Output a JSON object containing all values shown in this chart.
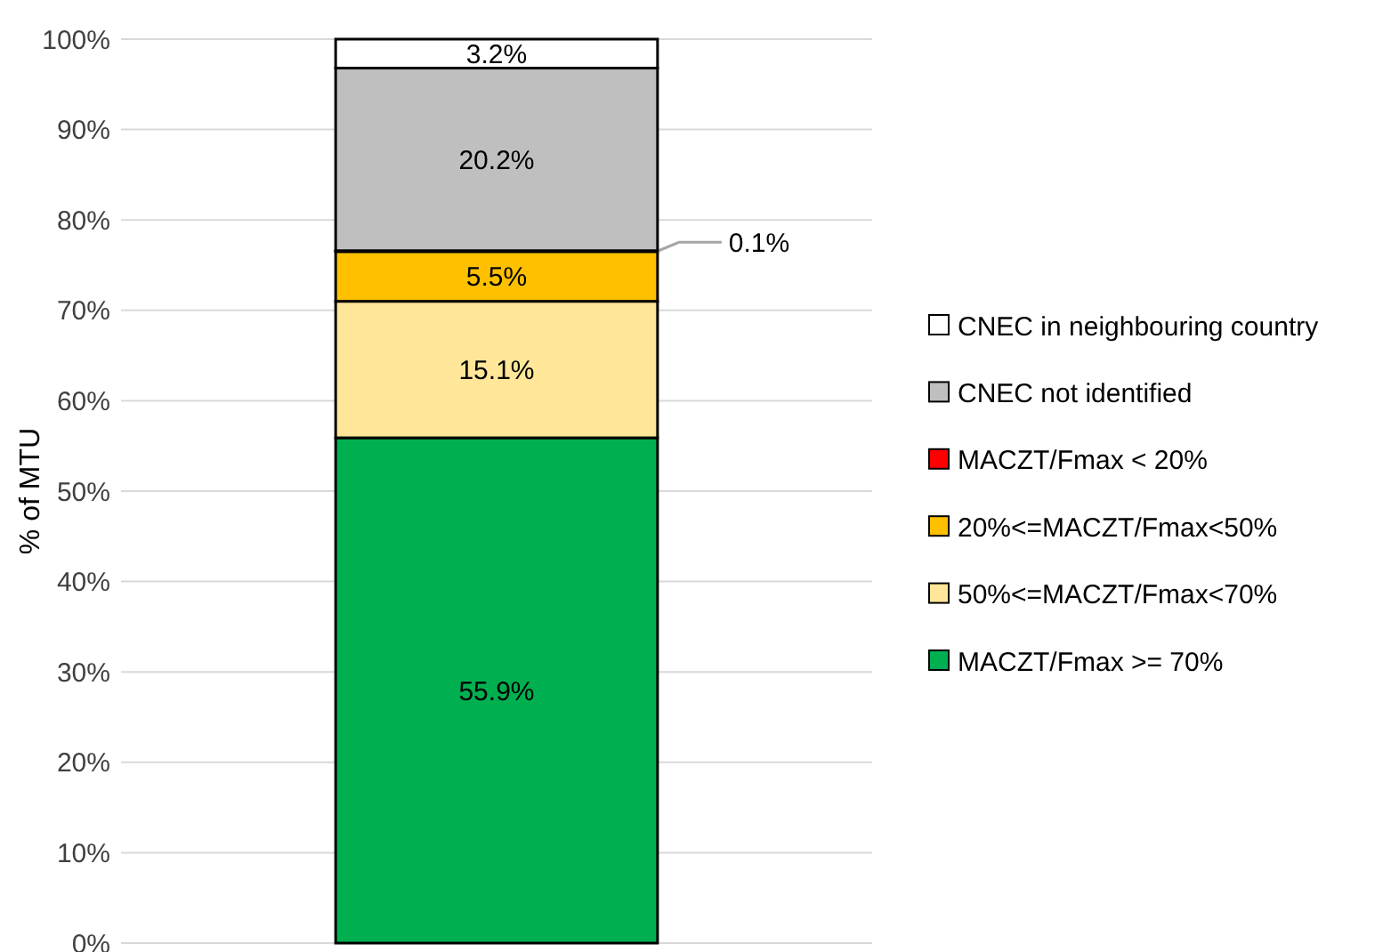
{
  "chart_data": {
    "type": "bar",
    "stacked": true,
    "categories": [
      null
    ],
    "ylabel": "% of MTU",
    "ylim": [
      0,
      100
    ],
    "yticks": [
      {
        "value": 0,
        "label": "0%"
      },
      {
        "value": 10,
        "label": "10%"
      },
      {
        "value": 20,
        "label": "20%"
      },
      {
        "value": 30,
        "label": "30%"
      },
      {
        "value": 40,
        "label": "40%"
      },
      {
        "value": 50,
        "label": "50%"
      },
      {
        "value": 60,
        "label": "60%"
      },
      {
        "value": 70,
        "label": "70%"
      },
      {
        "value": 80,
        "label": "80%"
      },
      {
        "value": 90,
        "label": "90%"
      },
      {
        "value": 100,
        "label": "100%"
      }
    ],
    "grid": "y",
    "legend": "right",
    "series": [
      {
        "name": "MACZT/Fmax >= 70%",
        "color": "#00b050",
        "values": [
          55.9
        ],
        "value_labels": [
          "55.9%"
        ]
      },
      {
        "name": "50%<=MACZT/Fmax<70%",
        "color": "#ffe699",
        "values": [
          15.1
        ],
        "value_labels": [
          "15.1%"
        ]
      },
      {
        "name": "20%<=MACZT/Fmax<50%",
        "color": "#ffc000",
        "values": [
          5.5
        ],
        "value_labels": [
          "5.5%"
        ]
      },
      {
        "name": "MACZT/Fmax < 20%",
        "color": "#ff0000",
        "values": [
          0.1
        ],
        "value_labels": [
          "0.1%"
        ]
      },
      {
        "name": "CNEC not identified",
        "color": "#bfbfbf",
        "values": [
          20.2
        ],
        "value_labels": [
          "20.2%"
        ]
      },
      {
        "name": "CNEC in neighbouring country",
        "color": "#ffffff",
        "values": [
          3.2
        ],
        "value_labels": [
          "3.2%"
        ]
      }
    ]
  }
}
